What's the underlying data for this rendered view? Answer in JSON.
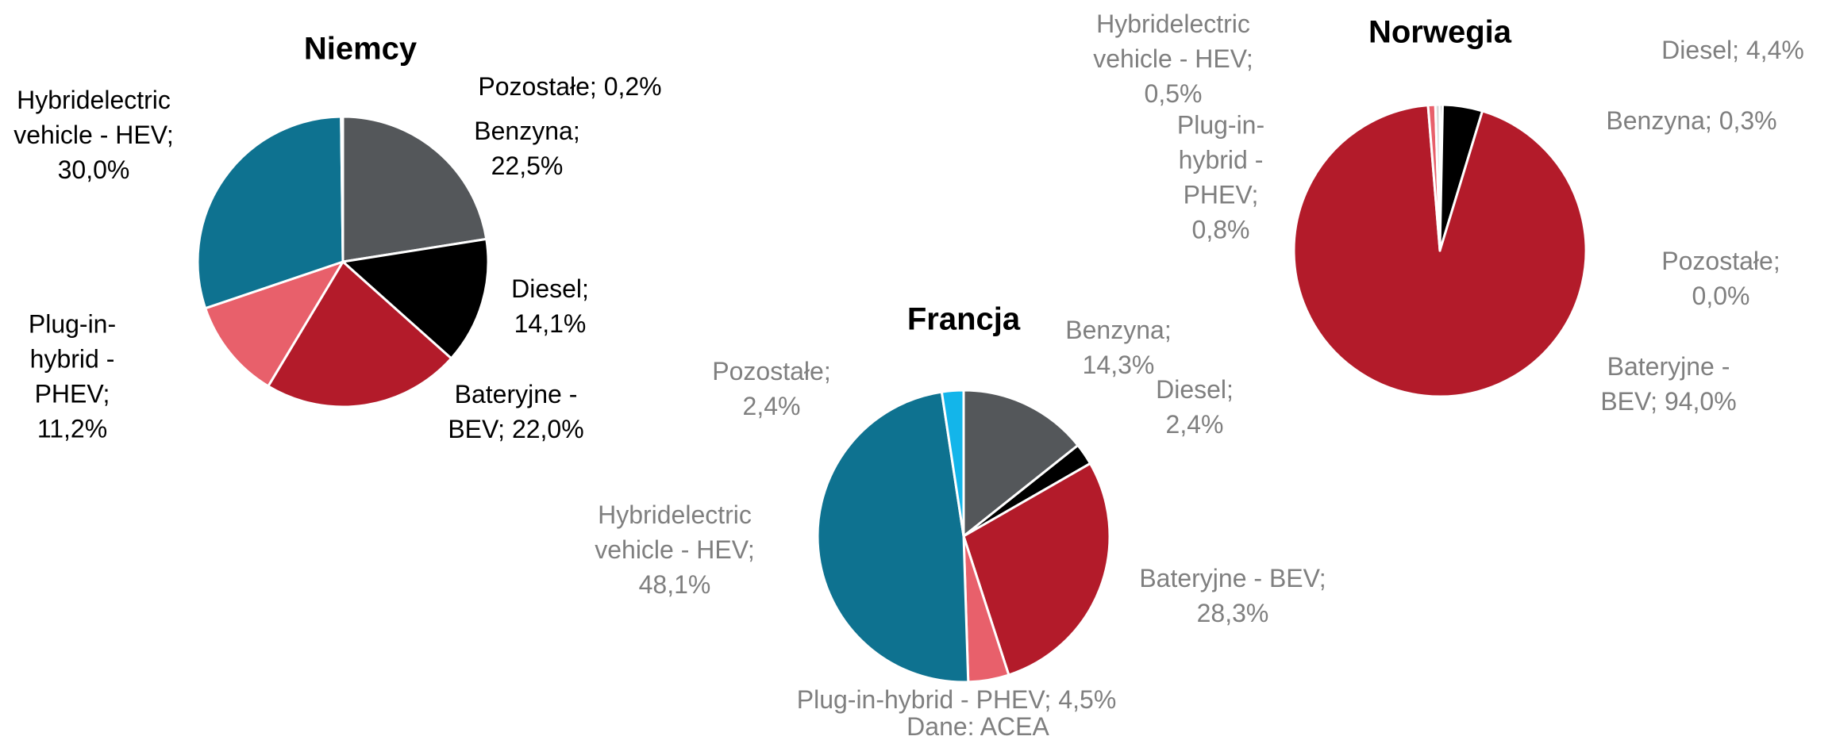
{
  "chart_data": [
    {
      "type": "pie",
      "title": "Niemcy",
      "label_separator": "; ",
      "label_color": "#000000",
      "categories": [
        "Benzyna",
        "Diesel",
        "Bateryjne - BEV",
        "Plug-in-hybrid - PHEV",
        "Hybridelectric vehicle - HEV",
        "Pozostałe"
      ],
      "values": [
        22.5,
        14.1,
        22.0,
        11.2,
        30.0,
        0.2
      ],
      "value_labels": [
        "22,5%",
        "14,1%",
        "22,0%",
        "11,2%",
        "30,0%",
        "0,2%"
      ],
      "colors": [
        "#54575a",
        "#000000",
        "#b31b2a",
        "#e8606b",
        "#0e7290",
        "#13b5ea"
      ]
    },
    {
      "type": "pie",
      "title": "Francja",
      "label_separator": "; ",
      "label_color": "#7f7f7f",
      "categories": [
        "Benzyna",
        "Diesel",
        "Bateryjne - BEV",
        "Plug-in-hybrid - PHEV",
        "Hybridelectric vehicle - HEV",
        "Pozostałe"
      ],
      "values": [
        14.3,
        2.4,
        28.3,
        4.5,
        48.1,
        2.4
      ],
      "value_labels": [
        "14,3%",
        "2,4%",
        "28,3%",
        "4,5%",
        "48,1%",
        "2,4%"
      ],
      "colors": [
        "#54575a",
        "#000000",
        "#b31b2a",
        "#e8606b",
        "#0e7290",
        "#13b5ea"
      ]
    },
    {
      "type": "pie",
      "title": "Norwegia",
      "label_separator": "; ",
      "label_color": "#7f7f7f",
      "categories": [
        "Benzyna",
        "Diesel",
        "Bateryjne - BEV",
        "Plug-in-hybrid - PHEV",
        "Hybridelectric vehicle - HEV",
        "Pozostałe"
      ],
      "values": [
        0.3,
        4.4,
        94.0,
        0.8,
        0.5,
        0.0
      ],
      "value_labels": [
        "0,3%",
        "4,4%",
        "94,0%",
        "0,8%",
        "0,5%",
        "0,0%"
      ],
      "colors": [
        "#54575a",
        "#000000",
        "#b31b2a",
        "#e8606b",
        "#d9d9d9",
        "#13b5ea"
      ]
    }
  ],
  "source": "Dane: ACEA"
}
